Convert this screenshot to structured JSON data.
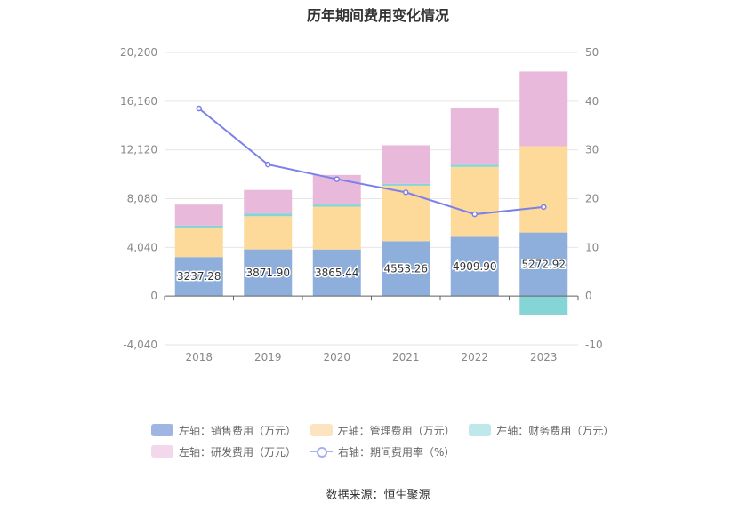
{
  "chart_data": {
    "type": "bar",
    "title": "历年期间费用变化情况",
    "categories": [
      "2018",
      "2019",
      "2020",
      "2021",
      "2022",
      "2023"
    ],
    "left_axis": {
      "ticks": [
        "20,200",
        "16,160",
        "12,120",
        "8,080",
        "4,040",
        "0",
        "-4,040"
      ],
      "min": -4040,
      "max": 20200
    },
    "right_axis": {
      "ticks": [
        "50",
        "40",
        "30",
        "20",
        "10",
        "0",
        "-10"
      ],
      "min": -10,
      "max": 50
    },
    "series": [
      {
        "name": "左轴：销售费用（万元）",
        "type": "bar",
        "color": "#8eaedc",
        "values": [
          3237.28,
          3871.9,
          3865.44,
          4553.26,
          4909.9,
          5272.92
        ],
        "labels": [
          "3237.28",
          "3871.90",
          "3865.44",
          "4553.26",
          "4909.90",
          "5272.92"
        ]
      },
      {
        "name": "左轴：管理费用（万元）",
        "type": "bar",
        "color": "#fdd99a",
        "values": [
          2450,
          2750,
          3550,
          4600,
          5800,
          7150
        ]
      },
      {
        "name": "左轴：财务费用（万元）",
        "type": "bar",
        "color": "#86d5d6",
        "values": [
          150,
          230,
          180,
          150,
          180,
          -1600
        ]
      },
      {
        "name": "左轴：研发费用（万元）",
        "type": "bar",
        "color": "#e8b9da",
        "values": [
          1750,
          1950,
          2450,
          3200,
          4700,
          6200
        ]
      },
      {
        "name": "右轴：期间费用率（%）",
        "type": "line",
        "color": "#7b80ea",
        "values": [
          38.5,
          27.0,
          24.0,
          21.3,
          16.8,
          18.3
        ]
      }
    ]
  },
  "legend_colors": [
    "#a0b6e2",
    "#fde4c0",
    "#bfe8ea",
    "#f3d8ec"
  ],
  "source": "数据来源：恒生聚源"
}
